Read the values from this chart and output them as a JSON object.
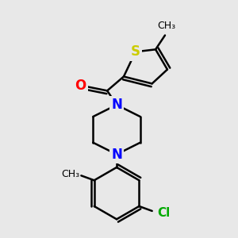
{
  "background_color": "#e8e8e8",
  "bond_color": "#000000",
  "bond_width": 1.8,
  "atoms": {
    "S": {
      "color": "#cccc00",
      "fontsize": 12,
      "fontweight": "bold"
    },
    "O": {
      "color": "#ff0000",
      "fontsize": 12,
      "fontweight": "bold"
    },
    "N": {
      "color": "#0000ff",
      "fontsize": 12,
      "fontweight": "bold"
    },
    "Cl": {
      "color": "#00aa00",
      "fontsize": 11,
      "fontweight": "bold"
    },
    "CH3_small": {
      "color": "#000000",
      "fontsize": 9
    }
  },
  "figsize": [
    3.0,
    3.0
  ],
  "dpi": 100
}
